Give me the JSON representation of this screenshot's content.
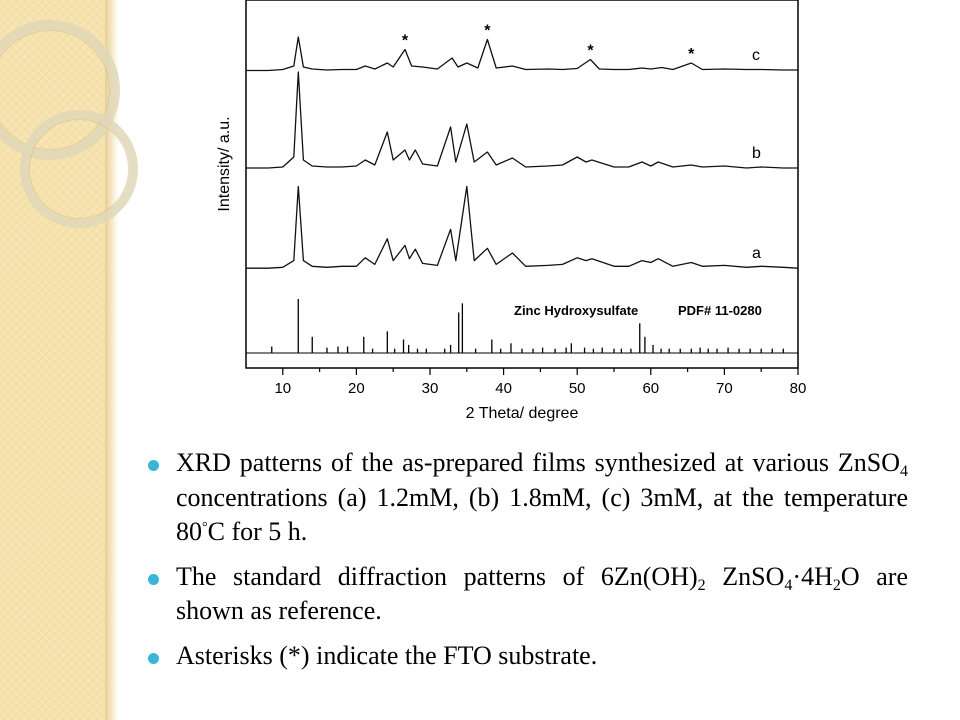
{
  "chart_data": {
    "type": "line",
    "xlabel": "2 Theta/ degree",
    "ylabel": "Intensity/ a.u.",
    "xlim": [
      5,
      80
    ],
    "xticks": [
      10,
      20,
      30,
      40,
      50,
      60,
      70,
      80
    ],
    "yticks_shown": false,
    "grid": false,
    "series": [
      {
        "name": "c",
        "label": "c",
        "x": [
          5,
          8,
          10,
          11.5,
          12.1,
          12.8,
          14,
          16,
          18,
          20,
          21.2,
          22.5,
          24.2,
          25,
          26.6,
          27.5,
          29,
          31,
          33,
          33.8,
          35,
          36.5,
          37.8,
          39,
          41.2,
          43,
          46,
          48,
          50,
          51.8,
          53,
          55,
          57,
          58.8,
          60,
          61.5,
          63,
          65.5,
          67,
          70,
          73,
          75,
          78,
          80
        ],
        "y": [
          0.03,
          0.03,
          0.05,
          0.12,
          0.7,
          0.1,
          0.06,
          0.04,
          0.05,
          0.05,
          0.12,
          0.06,
          0.18,
          0.1,
          0.45,
          0.12,
          0.1,
          0.06,
          0.28,
          0.1,
          0.18,
          0.08,
          0.65,
          0.08,
          0.12,
          0.05,
          0.06,
          0.05,
          0.07,
          0.25,
          0.06,
          0.05,
          0.05,
          0.08,
          0.06,
          0.09,
          0.05,
          0.18,
          0.05,
          0.06,
          0.05,
          0.05,
          0.04,
          0.04
        ]
      },
      {
        "name": "b",
        "label": "b",
        "x": [
          5,
          8,
          10,
          11.5,
          12.1,
          12.8,
          14,
          16,
          18,
          20,
          21.2,
          22.5,
          24.2,
          25,
          26.6,
          27.2,
          28,
          29,
          31,
          32.8,
          33.5,
          35,
          36,
          37.8,
          39,
          41.2,
          43,
          46,
          48,
          50,
          51.2,
          52,
          55,
          57,
          58.8,
          60,
          61,
          63,
          65.5,
          67,
          70,
          73,
          75,
          78,
          80
        ],
        "y": [
          0.04,
          0.04,
          0.05,
          0.15,
          1.0,
          0.12,
          0.06,
          0.05,
          0.05,
          0.06,
          0.12,
          0.07,
          0.4,
          0.12,
          0.22,
          0.12,
          0.22,
          0.08,
          0.06,
          0.45,
          0.1,
          0.48,
          0.1,
          0.2,
          0.07,
          0.14,
          0.05,
          0.06,
          0.07,
          0.15,
          0.1,
          0.12,
          0.05,
          0.05,
          0.1,
          0.06,
          0.1,
          0.05,
          0.07,
          0.05,
          0.06,
          0.04,
          0.05,
          0.04,
          0.04
        ]
      },
      {
        "name": "a",
        "label": "a",
        "x": [
          5,
          8,
          10,
          11.5,
          12.1,
          12.8,
          14,
          16,
          18,
          20,
          21.2,
          22.5,
          24.2,
          25,
          26.6,
          27.2,
          28,
          29,
          31,
          32.8,
          33.5,
          35,
          36,
          37.8,
          39,
          41.2,
          43,
          46,
          48,
          50,
          51.2,
          52,
          55,
          57,
          58.8,
          60,
          61,
          63,
          65.5,
          67,
          70,
          73,
          75,
          78,
          80
        ],
        "y": [
          0.04,
          0.04,
          0.05,
          0.12,
          0.9,
          0.12,
          0.06,
          0.05,
          0.06,
          0.06,
          0.15,
          0.08,
          0.35,
          0.12,
          0.28,
          0.14,
          0.24,
          0.09,
          0.07,
          0.45,
          0.12,
          0.9,
          0.12,
          0.25,
          0.08,
          0.2,
          0.06,
          0.07,
          0.08,
          0.15,
          0.12,
          0.14,
          0.06,
          0.06,
          0.12,
          0.1,
          0.14,
          0.06,
          0.1,
          0.06,
          0.07,
          0.05,
          0.06,
          0.05,
          0.04
        ]
      }
    ],
    "reference": {
      "label": "Zinc Hydroxysulfate",
      "pdf": "PDF# 11-0280",
      "peaks_x": [
        8.5,
        12.1,
        14,
        16,
        17.5,
        18.8,
        21,
        22.2,
        24.2,
        25.2,
        26.4,
        27.1,
        28.3,
        29.5,
        32,
        32.8,
        33.9,
        34.4,
        36.2,
        38.4,
        39.6,
        41,
        42.5,
        44,
        45.3,
        47,
        48.5,
        49.2,
        51,
        52.2,
        53.4,
        55,
        56,
        57.3,
        58.5,
        59.2,
        60.3,
        61.4,
        62.5,
        64,
        65.5,
        66.7,
        67.8,
        69,
        70.5,
        72,
        73.5,
        75,
        76.5,
        78
      ],
      "peaks_y": [
        0.12,
        1.0,
        0.3,
        0.1,
        0.12,
        0.12,
        0.3,
        0.08,
        0.4,
        0.08,
        0.25,
        0.15,
        0.08,
        0.08,
        0.08,
        0.15,
        0.75,
        0.92,
        0.08,
        0.25,
        0.08,
        0.18,
        0.08,
        0.08,
        0.1,
        0.08,
        0.1,
        0.18,
        0.1,
        0.08,
        0.1,
        0.08,
        0.08,
        0.08,
        0.55,
        0.3,
        0.15,
        0.08,
        0.08,
        0.08,
        0.08,
        0.1,
        0.08,
        0.08,
        0.1,
        0.08,
        0.08,
        0.08,
        0.08,
        0.08
      ]
    },
    "substrate_markers": {
      "symbol": "*",
      "x": [
        26.6,
        37.8,
        51.8,
        65.5
      ]
    }
  },
  "bullets": [
    {
      "t1": "XRD patterns of the as-prepared films synthesized at various ZnSO",
      "s1": "4",
      "t2": " concentrations (a) 1.2mM, (b) 1.8mM, (c) 3mM, at the temperature 80",
      "deg": "°",
      "t3": "C for 5 h."
    },
    {
      "t1": "The standard diffraction patterns of 6Zn(OH)",
      "s1": "2",
      "t2": " ZnSO",
      "s2": "4",
      "t3": "·4H",
      "s3": "2",
      "t4": "O are shown as reference."
    },
    {
      "t1": "Asterisks (*) indicate the FTO substrate."
    }
  ],
  "colors": {
    "band": "#f6e2ad",
    "bullet": "#39b6d6",
    "ink": "#000000"
  }
}
